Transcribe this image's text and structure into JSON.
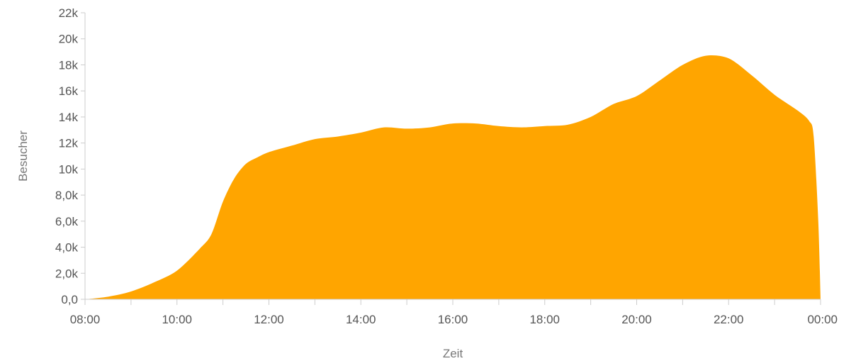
{
  "chart_data": {
    "type": "area",
    "title": "",
    "xlabel": "Zeit",
    "ylabel": "Besucher",
    "xlim": [
      8,
      24
    ],
    "ylim": [
      0,
      22000
    ],
    "grid": false,
    "legend": "none",
    "color": "#FFA500",
    "x_ticks": [
      {
        "x": 8,
        "label": "08:00"
      },
      {
        "x": 10,
        "label": "10:00"
      },
      {
        "x": 12,
        "label": "12:00"
      },
      {
        "x": 14,
        "label": "14:00"
      },
      {
        "x": 16,
        "label": "16:00"
      },
      {
        "x": 18,
        "label": "18:00"
      },
      {
        "x": 20,
        "label": "20:00"
      },
      {
        "x": 22,
        "label": "22:00"
      },
      {
        "x": 24,
        "label": "00:00"
      }
    ],
    "y_ticks": [
      {
        "y": 0,
        "label": "0,0"
      },
      {
        "y": 2000,
        "label": "2,0k"
      },
      {
        "y": 4000,
        "label": "4,0k"
      },
      {
        "y": 6000,
        "label": "6,0k"
      },
      {
        "y": 8000,
        "label": "8,0k"
      },
      {
        "y": 10000,
        "label": "10k"
      },
      {
        "y": 12000,
        "label": "12k"
      },
      {
        "y": 14000,
        "label": "14k"
      },
      {
        "y": 16000,
        "label": "16k"
      },
      {
        "y": 18000,
        "label": "18k"
      },
      {
        "y": 20000,
        "label": "20k"
      },
      {
        "y": 22000,
        "label": "22k"
      }
    ],
    "series": [
      {
        "x": [
          8.0,
          8.5,
          9.0,
          9.5,
          10.0,
          10.5,
          10.75,
          11.0,
          11.25,
          11.5,
          11.75,
          12.0,
          12.5,
          13.0,
          13.5,
          14.0,
          14.5,
          15.0,
          15.5,
          16.0,
          16.5,
          17.0,
          17.5,
          18.0,
          18.5,
          19.0,
          19.5,
          20.0,
          20.5,
          21.0,
          21.5,
          22.0,
          22.5,
          23.0,
          23.5,
          23.75,
          23.85,
          23.95,
          24.0
        ],
        "y": [
          0,
          200,
          600,
          1300,
          2200,
          3900,
          5000,
          7500,
          9300,
          10400,
          10900,
          11300,
          11800,
          12300,
          12500,
          12800,
          13200,
          13100,
          13200,
          13500,
          13500,
          13300,
          13200,
          13300,
          13400,
          14000,
          15000,
          15600,
          16800,
          18000,
          18700,
          18500,
          17200,
          15700,
          14500,
          13700,
          12500,
          6000,
          0
        ]
      }
    ]
  }
}
